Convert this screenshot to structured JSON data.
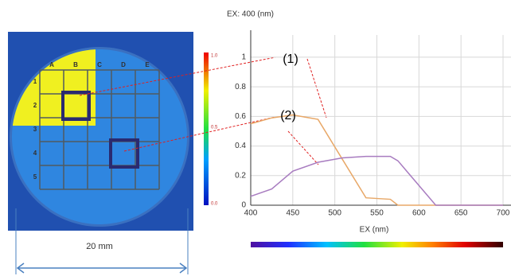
{
  "image": {
    "column_labels": [
      "A",
      "B",
      "C",
      "D",
      "E"
    ],
    "row_labels": [
      "1",
      "2",
      "3",
      "4",
      "5"
    ],
    "colorbar_labels": [
      "1.0",
      "0.5",
      "0.0"
    ],
    "scale_label": "20 mm"
  },
  "chart_data": {
    "type": "line",
    "title": "EX: 400 (nm)",
    "x_label": "EX (nm)",
    "x": [
      400,
      425,
      450,
      480,
      509,
      537,
      566,
      575,
      620,
      700
    ],
    "series": [
      {
        "name": "(1)",
        "color": "#e8a868",
        "values": [
          0.55,
          0.59,
          0.61,
          0.58,
          0.31,
          0.05,
          0.04,
          0,
          0,
          0
        ]
      },
      {
        "name": "(2)",
        "color": "#a87cc0",
        "values": [
          0.06,
          0.11,
          0.23,
          0.29,
          0.32,
          0.33,
          0.33,
          0.3,
          0,
          0
        ]
      }
    ],
    "xlim": [
      400,
      700
    ],
    "ylim": [
      0,
      1.15
    ],
    "xticks": [
      400,
      450,
      500,
      550,
      600,
      650,
      700
    ],
    "yticks": [
      0,
      0.2,
      0.4,
      0.6,
      0.8,
      1
    ],
    "grid": true
  }
}
